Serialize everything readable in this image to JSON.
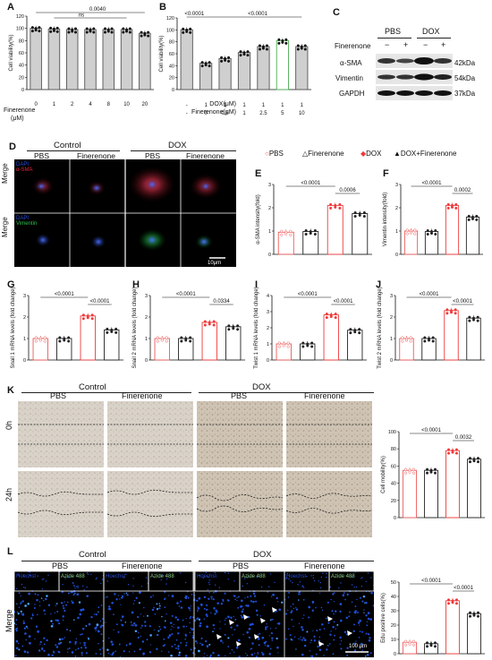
{
  "colors": {
    "pbs": "#ee5a5a",
    "dox": "#ee3b3b",
    "grey_bar": "#cfcfcf",
    "green_bar": "#4caf50",
    "blue_channel": "#2a4cd6",
    "red_channel": "#e8243c",
    "green_channel": "#2ec24a",
    "edu_label": "#8fd18f"
  },
  "panel_letters": [
    "A",
    "B",
    "C",
    "D",
    "E",
    "F",
    "G",
    "H",
    "I",
    "J",
    "K",
    "L"
  ],
  "panel_A": {
    "ylabel": "Cell viability(%)",
    "yticks": [
      "0",
      "20",
      "40",
      "60",
      "80",
      "100",
      "120"
    ],
    "row_label": "Finerenone",
    "row_unit": "(μM)",
    "categories": [
      "0",
      "1",
      "2",
      "4",
      "8",
      "10",
      "20"
    ],
    "sig_top": "0.0040",
    "sig_ns": "ns"
  },
  "panel_B": {
    "ylabel": "Cell viability(%)",
    "yticks": [
      "0",
      "20",
      "40",
      "60",
      "80",
      "100",
      "120"
    ],
    "row1_label": "DOX(μM)",
    "row1_values": [
      "-",
      "1",
      "1",
      "1",
      "1",
      "1",
      "1"
    ],
    "row2_label": "Finerenone(μM)",
    "row2_values": [
      "-",
      "0",
      "0.5",
      "1",
      "2.5",
      "5",
      "10"
    ],
    "sig_left": "<0.0001",
    "sig_right": "<0.0001"
  },
  "panel_C": {
    "group_pbs": "PBS",
    "group_dox": "DOX",
    "row_label": "Finerenone",
    "signs": [
      "−",
      "+",
      "−",
      "+"
    ],
    "proteins": [
      "α-SMA",
      "Vimentin",
      "GAPDH"
    ],
    "sizes": [
      "42kDa",
      "54kDa",
      "37kDa"
    ]
  },
  "panel_D": {
    "group_control": "Control",
    "group_dox": "DOX",
    "cols": [
      "PBS",
      "Finerenone",
      "PBS",
      "Finerenone"
    ],
    "row_label": "Merge",
    "row1_stain1": "DAPI",
    "row1_stain2": "α-SMA",
    "row2_stain1": "DAPI",
    "row2_stain2": "Vimentin",
    "scale": "10μm"
  },
  "legend": [
    "PBS",
    "Finerenone",
    "DOX",
    "DOX+Finerenone"
  ],
  "chart_data": [
    {
      "panel": "A",
      "type": "bar",
      "categories": [
        "0",
        "1",
        "2",
        "4",
        "8",
        "10",
        "20"
      ],
      "values": [
        100,
        99,
        98,
        98,
        98,
        98,
        92
      ],
      "ylim": [
        0,
        120
      ],
      "ylabel": "Cell viability(%)",
      "annotations": [
        "0.0040",
        "ns"
      ]
    },
    {
      "panel": "B",
      "type": "bar",
      "categories": [
        "-/-",
        "1/0",
        "1/0.5",
        "1/1",
        "1/2.5",
        "1/5",
        "1/10"
      ],
      "values": [
        100,
        44,
        52,
        62,
        72,
        82,
        72
      ],
      "ylim": [
        0,
        120
      ],
      "ylabel": "Cell viability(%)",
      "annotations": [
        "<0.0001",
        "<0.0001"
      ]
    },
    {
      "panel": "E",
      "type": "bar",
      "categories": [
        "PBS",
        "Finerenone",
        "DOX",
        "DOX+Finerenone"
      ],
      "values": [
        0.95,
        0.98,
        2.1,
        1.75
      ],
      "ylim": [
        0,
        3
      ],
      "ylabel": "α-SMA intensity(fold)",
      "annotations": [
        "<0.0001",
        "0.0006"
      ]
    },
    {
      "panel": "F",
      "type": "bar",
      "categories": [
        "PBS",
        "Finerenone",
        "DOX",
        "DOX+Finerenone"
      ],
      "values": [
        1.0,
        0.98,
        2.1,
        1.6
      ],
      "ylim": [
        0,
        3
      ],
      "ylabel": "Vimentin intensity(fold)",
      "annotations": [
        "<0.0001",
        "0.0002"
      ]
    },
    {
      "panel": "G",
      "type": "bar",
      "categories": [
        "PBS",
        "Finerenone",
        "DOX",
        "DOX+Finerenone"
      ],
      "values": [
        1.0,
        1.0,
        2.05,
        1.4
      ],
      "ylim": [
        0,
        3
      ],
      "ylabel": "Snail 1 mRNA levels (fold change)",
      "annotations": [
        "<0.0001",
        "<0.0001"
      ]
    },
    {
      "panel": "H",
      "type": "bar",
      "categories": [
        "PBS",
        "Finerenone",
        "DOX",
        "DOX+Finerenone"
      ],
      "values": [
        1.0,
        1.0,
        1.75,
        1.55
      ],
      "ylim": [
        0,
        3
      ],
      "ylabel": "Snail 2 mRNA levels (fold change)",
      "annotations": [
        "<0.0001",
        "0.0334"
      ]
    },
    {
      "panel": "I",
      "type": "bar",
      "categories": [
        "PBS",
        "Finerenone",
        "DOX",
        "DOX+Finerenone"
      ],
      "values": [
        1.0,
        1.0,
        2.8,
        1.85
      ],
      "ylim": [
        0,
        4
      ],
      "ylabel": "Twist 1 mRNA levels (fold change)",
      "annotations": [
        "<0.0001",
        "<0.0001"
      ]
    },
    {
      "panel": "J",
      "type": "bar",
      "categories": [
        "PBS",
        "Finerenone",
        "DOX",
        "DOX+Finerenone"
      ],
      "values": [
        1.0,
        1.0,
        2.3,
        1.95
      ],
      "ylim": [
        0,
        3
      ],
      "ylabel": "Twist 2 mRNA levels (fold change)",
      "annotations": [
        "<0.0001",
        "<0.0001"
      ]
    },
    {
      "panel": "K",
      "type": "bar",
      "categories": [
        "PBS",
        "Finerenone",
        "DOX",
        "DOX+Finerenone"
      ],
      "values": [
        55,
        55,
        78,
        68
      ],
      "ylim": [
        0,
        100
      ],
      "ylabel": "Cell mobility(%)",
      "annotations": [
        "<0.0001",
        "0.0032"
      ]
    },
    {
      "panel": "L",
      "type": "bar",
      "categories": [
        "PBS",
        "Finerenone",
        "DOX",
        "DOX+Finerenone"
      ],
      "values": [
        8,
        7,
        37,
        28
      ],
      "ylim": [
        0,
        50
      ],
      "ylabel": "Edu positive cells(%)",
      "annotations": [
        "<0.0001",
        "<0.0001"
      ]
    }
  ],
  "panel_K": {
    "group_control": "Control",
    "group_dox": "DOX",
    "cols": [
      "PBS",
      "Finerenone",
      "PBS",
      "Finerenone"
    ],
    "rows": [
      "0h",
      "24h"
    ]
  },
  "panel_L": {
    "group_control": "Control",
    "group_dox": "DOX",
    "cols": [
      "PBS",
      "Finerenone",
      "PBS",
      "Finerenone"
    ],
    "label_hoechst": "Hoechst",
    "label_azide": "Azide 488",
    "row_label": "Merge",
    "scale": "100 μm"
  }
}
